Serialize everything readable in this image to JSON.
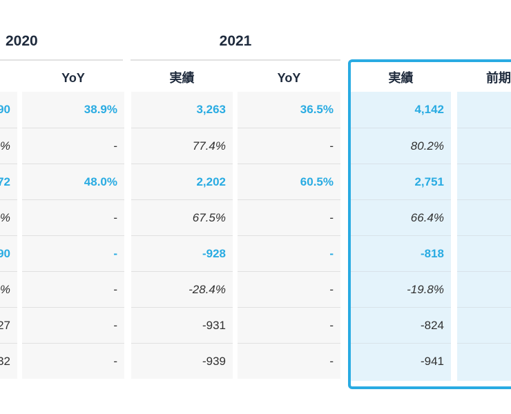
{
  "colors": {
    "accent": "#29ABE2",
    "highlight_fill": "#E4F3FB",
    "row_fill": "#F7F7F7",
    "header_text": "#1E2A3C",
    "value_text": "#303030"
  },
  "groups": [
    {
      "year": "2020",
      "columns": [
        {
          "header": "",
          "cells": [
            {
              "t": "90",
              "s": "accent"
            },
            {
              "t": "%",
              "s": "italic"
            },
            {
              "t": "72",
              "s": "accent"
            },
            {
              "t": "%",
              "s": "italic"
            },
            {
              "t": "90",
              "s": "accent"
            },
            {
              "t": "%",
              "s": "italic"
            },
            {
              "t": "27",
              "s": "plain"
            },
            {
              "t": "32",
              "s": "plain"
            }
          ]
        },
        {
          "header": "YoY",
          "cells": [
            {
              "t": "38.9%",
              "s": "accent"
            },
            {
              "t": "-",
              "s": "plain"
            },
            {
              "t": "48.0%",
              "s": "accent"
            },
            {
              "t": "-",
              "s": "plain"
            },
            {
              "t": "-",
              "s": "accent"
            },
            {
              "t": "-",
              "s": "plain"
            },
            {
              "t": "-",
              "s": "plain"
            },
            {
              "t": "-",
              "s": "plain"
            }
          ]
        }
      ]
    },
    {
      "year": "2021",
      "columns": [
        {
          "header": "実績",
          "cells": [
            {
              "t": "3,263",
              "s": "accent"
            },
            {
              "t": "77.4%",
              "s": "italic"
            },
            {
              "t": "2,202",
              "s": "accent"
            },
            {
              "t": "67.5%",
              "s": "italic"
            },
            {
              "t": "-928",
              "s": "accent"
            },
            {
              "t": "-28.4%",
              "s": "italic"
            },
            {
              "t": "-931",
              "s": "plain"
            },
            {
              "t": "-939",
              "s": "plain"
            }
          ]
        },
        {
          "header": "YoY",
          "cells": [
            {
              "t": "36.5%",
              "s": "accent"
            },
            {
              "t": "-",
              "s": "plain"
            },
            {
              "t": "60.5%",
              "s": "accent"
            },
            {
              "t": "-",
              "s": "plain"
            },
            {
              "t": "-",
              "s": "accent"
            },
            {
              "t": "-",
              "s": "plain"
            },
            {
              "t": "-",
              "s": "plain"
            },
            {
              "t": "-",
              "s": "plain"
            }
          ]
        }
      ]
    },
    {
      "year": "",
      "highlighted": true,
      "columns": [
        {
          "header": "実績",
          "cells": [
            {
              "t": "4,142",
              "s": "accent"
            },
            {
              "t": "80.2%",
              "s": "italic"
            },
            {
              "t": "2,751",
              "s": "accent"
            },
            {
              "t": "66.4%",
              "s": "italic"
            },
            {
              "t": "-818",
              "s": "accent"
            },
            {
              "t": "-19.8%",
              "s": "italic"
            },
            {
              "t": "-824",
              "s": "plain"
            },
            {
              "t": "-941",
              "s": "plain"
            }
          ]
        },
        {
          "header": "前期",
          "cells": [
            {
              "t": "",
              "s": "plain"
            },
            {
              "t": "",
              "s": "plain"
            },
            {
              "t": "",
              "s": "plain"
            },
            {
              "t": "",
              "s": "plain"
            },
            {
              "t": "",
              "s": "plain"
            },
            {
              "t": "",
              "s": "plain"
            },
            {
              "t": "",
              "s": "plain"
            },
            {
              "t": "",
              "s": "plain"
            }
          ]
        }
      ]
    }
  ]
}
